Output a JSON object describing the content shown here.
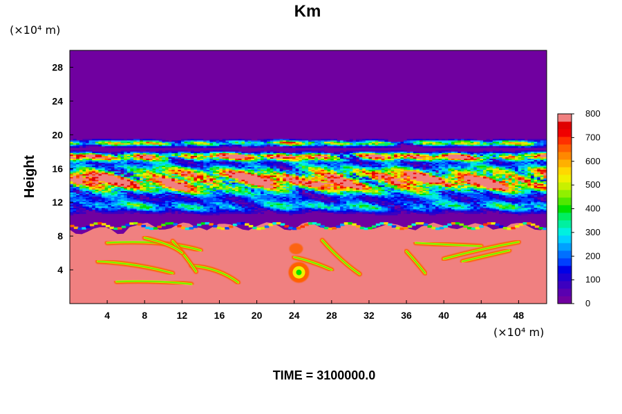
{
  "chart_data": {
    "type": "heatmap",
    "title": "Km",
    "variable": "Km",
    "ylabel": "Height",
    "xunit": "(×10⁴ m)",
    "yunit": "(×10⁴ m)",
    "xlim": [
      0,
      51
    ],
    "ylim": [
      0,
      30
    ],
    "xticks": [
      4,
      8,
      12,
      16,
      20,
      24,
      28,
      32,
      36,
      40,
      44,
      48
    ],
    "yticks": [
      4,
      8,
      12,
      16,
      20,
      24,
      28
    ],
    "colorbar": {
      "min": 0,
      "max": 800,
      "step": 25,
      "ticks": [
        0,
        100,
        200,
        300,
        400,
        500,
        600,
        700,
        800
      ],
      "colors": [
        "#7000a0",
        "#5a00b0",
        "#3c00c0",
        "#1e00d2",
        "#0000e6",
        "#0040ff",
        "#0070ff",
        "#00a0ff",
        "#00d0ff",
        "#00f0e0",
        "#00f0a0",
        "#00ee60",
        "#00e000",
        "#50e800",
        "#90f000",
        "#c8f000",
        "#f0f000",
        "#ffd800",
        "#ffb000",
        "#ff8800",
        "#ff6000",
        "#ff3000",
        "#f00000",
        "#e00000",
        "#f08080"
      ]
    },
    "regions": [
      {
        "label": "upper quiescent layer",
        "y_range": [
          19.5,
          30
        ],
        "value": 0
      },
      {
        "label": "turbulent band",
        "y_range": [
          9.5,
          19.5
        ],
        "value_range": [
          0,
          800
        ]
      },
      {
        "label": "lower mixed layer",
        "y_range": [
          0,
          9.5
        ],
        "value": 800
      },
      {
        "label": "eddy",
        "x": 24.5,
        "y": 3.7,
        "value": 650
      }
    ],
    "time_label": "TIME = 3100000.0"
  }
}
